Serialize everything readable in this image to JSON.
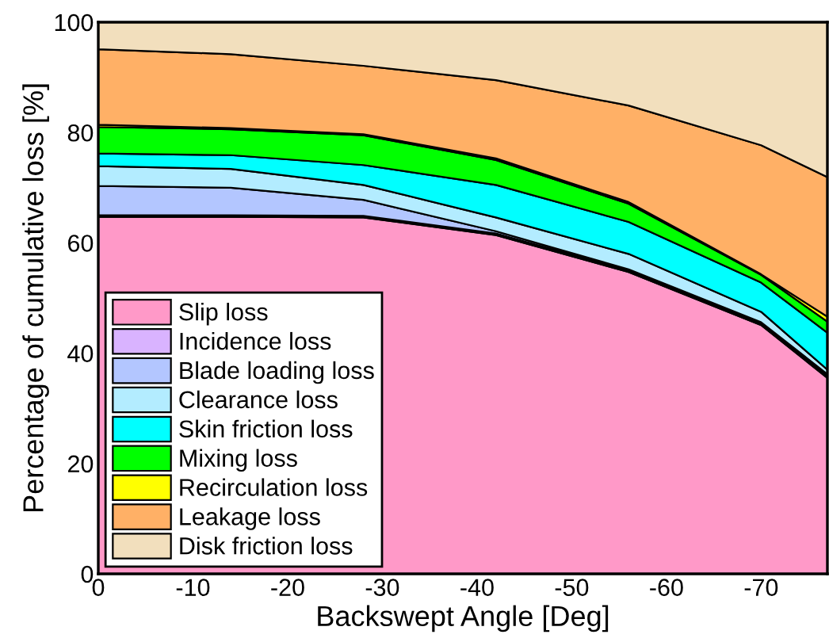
{
  "chart_data": {
    "type": "area",
    "stacked": true,
    "xlabel": "Backswept Angle [Deg]",
    "ylabel": "Percentage of cumulative loss [%]",
    "x": [
      0,
      -14,
      -28,
      -42,
      -56,
      -70,
      -77
    ],
    "xlim": [
      0,
      -77
    ],
    "xticks": [
      0,
      -10,
      -20,
      -30,
      -40,
      -50,
      -60,
      -70
    ],
    "ylim": [
      0,
      100
    ],
    "yticks": [
      0,
      20,
      40,
      60,
      80,
      100
    ],
    "grid": false,
    "legend": "bottom left",
    "series": [
      {
        "name": "Slip loss",
        "color": "#ff99c8",
        "values": [
          64.7,
          64.7,
          64.6,
          61.4,
          54.7,
          45.1,
          35.5
        ]
      },
      {
        "name": "Incidence loss",
        "color": "#d9b3ff",
        "values": [
          0.3,
          0.3,
          0.3,
          0.3,
          0.3,
          0.3,
          0.3
        ]
      },
      {
        "name": "Blade loading loss",
        "color": "#b3c6ff",
        "values": [
          5.3,
          5.0,
          2.9,
          0.4,
          0.2,
          0.2,
          0.4
        ]
      },
      {
        "name": "Clearance loss",
        "color": "#b3ecff",
        "values": [
          3.6,
          3.4,
          2.7,
          2.5,
          2.8,
          1.9,
          0.8
        ]
      },
      {
        "name": "Skin friction loss",
        "color": "#00ffff",
        "values": [
          2.3,
          2.5,
          3.6,
          5.9,
          5.8,
          5.3,
          6.7
        ]
      },
      {
        "name": "Mixing loss",
        "color": "#00ff00",
        "values": [
          4.8,
          4.7,
          5.4,
          4.5,
          3.3,
          1.4,
          2.0
        ]
      },
      {
        "name": "Recirculation loss",
        "color": "#ffff00",
        "values": [
          0.4,
          0.2,
          0.2,
          0.3,
          0.3,
          0.1,
          0.9
        ]
      },
      {
        "name": "Leakage loss",
        "color": "#ffb066",
        "values": [
          13.7,
          13.4,
          12.4,
          14.2,
          17.5,
          23.4,
          25.3
        ]
      },
      {
        "name": "Disk friction loss",
        "color": "#f2dfbd",
        "values": [
          4.9,
          5.8,
          7.9,
          10.5,
          15.1,
          22.3,
          28.1
        ]
      }
    ]
  }
}
